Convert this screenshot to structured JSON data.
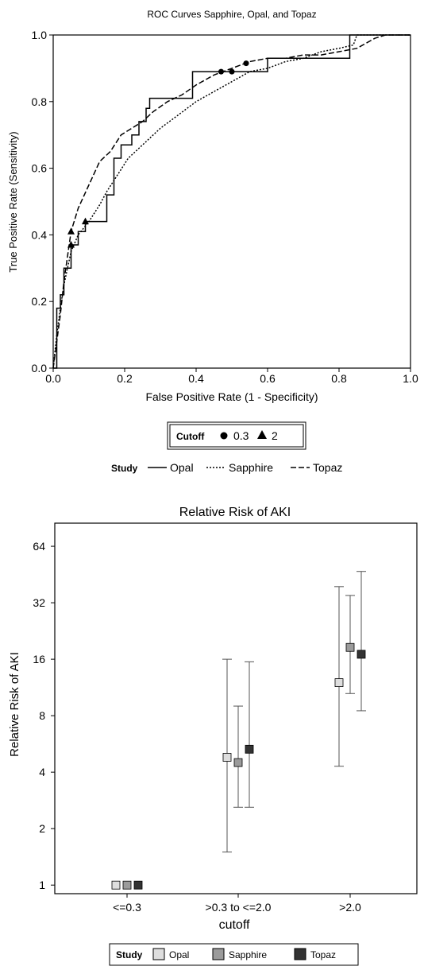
{
  "chart_data": [
    {
      "type": "line",
      "title": "ROC Curves Sapphire, Opal, and Topaz",
      "xlabel": "False Positive Rate (1 - Specificity)",
      "ylabel": "True Positive Rate (Sensitivity)",
      "xlim": [
        0,
        1
      ],
      "ylim": [
        0,
        1
      ],
      "x_ticks": [
        "0.0",
        "0.2",
        "0.4",
        "0.6",
        "0.8",
        "1.0"
      ],
      "y_ticks": [
        "0.0",
        "0.2",
        "0.4",
        "0.6",
        "0.8",
        "1.0"
      ],
      "grid": false,
      "series": [
        {
          "name": "Opal",
          "style": "solid",
          "points": [
            [
              0,
              0
            ],
            [
              0.01,
              0
            ],
            [
              0.01,
              0.18
            ],
            [
              0.02,
              0.18
            ],
            [
              0.02,
              0.22
            ],
            [
              0.03,
              0.22
            ],
            [
              0.03,
              0.3
            ],
            [
              0.05,
              0.3
            ],
            [
              0.05,
              0.37
            ],
            [
              0.07,
              0.37
            ],
            [
              0.07,
              0.41
            ],
            [
              0.09,
              0.41
            ],
            [
              0.09,
              0.44
            ],
            [
              0.15,
              0.44
            ],
            [
              0.15,
              0.52
            ],
            [
              0.17,
              0.52
            ],
            [
              0.17,
              0.63
            ],
            [
              0.19,
              0.63
            ],
            [
              0.19,
              0.67
            ],
            [
              0.22,
              0.67
            ],
            [
              0.22,
              0.7
            ],
            [
              0.24,
              0.7
            ],
            [
              0.24,
              0.74
            ],
            [
              0.26,
              0.74
            ],
            [
              0.26,
              0.78
            ],
            [
              0.27,
              0.78
            ],
            [
              0.27,
              0.81
            ],
            [
              0.39,
              0.81
            ],
            [
              0.39,
              0.89
            ],
            [
              0.48,
              0.89
            ],
            [
              0.48,
              0.89
            ],
            [
              0.6,
              0.89
            ],
            [
              0.6,
              0.93
            ],
            [
              0.83,
              0.93
            ],
            [
              0.83,
              1.0
            ],
            [
              1.0,
              1.0
            ]
          ]
        },
        {
          "name": "Sapphire",
          "style": "dotted",
          "points": [
            [
              0,
              0
            ],
            [
              0.01,
              0.1
            ],
            [
              0.02,
              0.18
            ],
            [
              0.03,
              0.25
            ],
            [
              0.05,
              0.35
            ],
            [
              0.07,
              0.4
            ],
            [
              0.1,
              0.44
            ],
            [
              0.13,
              0.49
            ],
            [
              0.15,
              0.53
            ],
            [
              0.18,
              0.58
            ],
            [
              0.21,
              0.63
            ],
            [
              0.24,
              0.66
            ],
            [
              0.27,
              0.69
            ],
            [
              0.3,
              0.72
            ],
            [
              0.35,
              0.76
            ],
            [
              0.4,
              0.8
            ],
            [
              0.45,
              0.83
            ],
            [
              0.5,
              0.86
            ],
            [
              0.55,
              0.89
            ],
            [
              0.6,
              0.9
            ],
            [
              0.65,
              0.92
            ],
            [
              0.7,
              0.93
            ],
            [
              0.75,
              0.95
            ],
            [
              0.8,
              0.96
            ],
            [
              0.84,
              0.97
            ],
            [
              0.85,
              1.0
            ],
            [
              0.9,
              1.0
            ],
            [
              1.0,
              1.0
            ]
          ]
        },
        {
          "name": "Topaz",
          "style": "dashed",
          "points": [
            [
              0,
              0
            ],
            [
              0.01,
              0.08
            ],
            [
              0.02,
              0.16
            ],
            [
              0.03,
              0.26
            ],
            [
              0.05,
              0.41
            ],
            [
              0.07,
              0.48
            ],
            [
              0.1,
              0.55
            ],
            [
              0.13,
              0.62
            ],
            [
              0.16,
              0.65
            ],
            [
              0.19,
              0.7
            ],
            [
              0.22,
              0.72
            ],
            [
              0.25,
              0.74
            ],
            [
              0.28,
              0.77
            ],
            [
              0.32,
              0.8
            ],
            [
              0.36,
              0.82
            ],
            [
              0.4,
              0.85
            ],
            [
              0.45,
              0.88
            ],
            [
              0.5,
              0.9
            ],
            [
              0.55,
              0.92
            ],
            [
              0.6,
              0.93
            ],
            [
              0.65,
              0.93
            ],
            [
              0.7,
              0.94
            ],
            [
              0.75,
              0.94
            ],
            [
              0.8,
              0.95
            ],
            [
              0.85,
              0.96
            ],
            [
              0.9,
              0.99
            ],
            [
              0.93,
              1.0
            ],
            [
              1.0,
              1.0
            ]
          ]
        }
      ],
      "cutoff_markers": [
        {
          "cutoff": "0.3",
          "symbol": "circle",
          "points": [
            [
              0.47,
              0.89
            ],
            [
              0.5,
              0.89
            ],
            [
              0.54,
              0.915
            ]
          ]
        },
        {
          "cutoff": "2",
          "symbol": "triangle",
          "points": [
            [
              0.05,
              0.37
            ],
            [
              0.05,
              0.41
            ],
            [
              0.09,
              0.44
            ]
          ]
        }
      ],
      "legends": [
        {
          "title": "Cutoff",
          "entries": [
            "0.3",
            "2"
          ]
        },
        {
          "title": "Study",
          "entries": [
            "Opal",
            "Sapphire",
            "Topaz"
          ]
        }
      ]
    },
    {
      "type": "scatter",
      "title": "Relative Risk of AKI",
      "xlabel": "cutoff",
      "ylabel": "Relative Risk of AKI",
      "scale_y": "log2",
      "ylim": [
        0.9,
        85
      ],
      "y_ticks": [
        1,
        2,
        4,
        8,
        16,
        32,
        64
      ],
      "categories": [
        "<=0.3",
        ">0.3 to <=2.0",
        ">2.0"
      ],
      "grid": false,
      "series": [
        {
          "name": "Opal",
          "color": "#dedede",
          "values": [
            1,
            4.8,
            12
          ],
          "lower": [
            null,
            1.5,
            4.3
          ],
          "upper": [
            null,
            16,
            39
          ]
        },
        {
          "name": "Sapphire",
          "color": "#9b9b9b",
          "values": [
            1,
            4.5,
            18.5
          ],
          "lower": [
            null,
            2.6,
            10.5
          ],
          "upper": [
            null,
            9,
            35
          ]
        },
        {
          "name": "Topaz",
          "color": "#333333",
          "values": [
            1,
            5.3,
            17
          ],
          "lower": [
            null,
            2.6,
            8.5
          ],
          "upper": [
            null,
            15.5,
            47
          ]
        }
      ],
      "legend": {
        "title": "Study",
        "entries": [
          "Opal",
          "Sapphire",
          "Topaz"
        ]
      }
    }
  ]
}
